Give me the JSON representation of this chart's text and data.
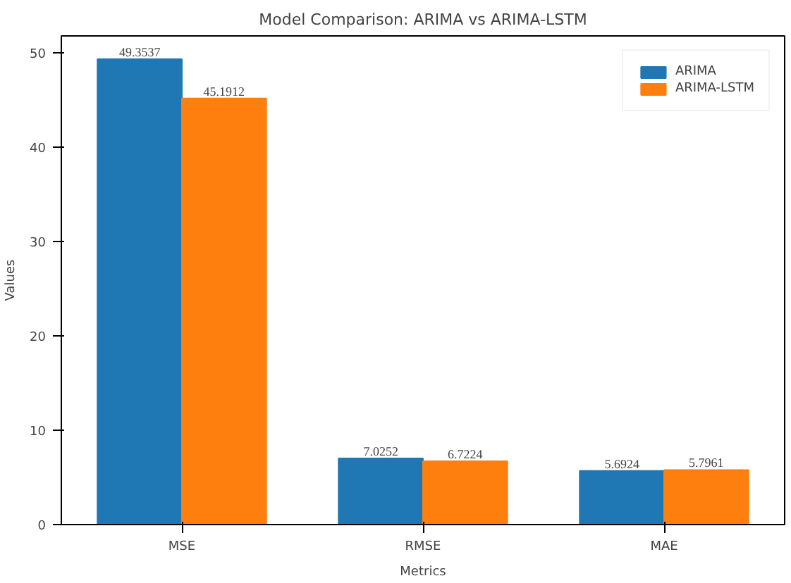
{
  "chart_data": {
    "type": "bar",
    "title": "Model Comparison: ARIMA vs ARIMA-LSTM",
    "xlabel": "Metrics",
    "ylabel": "Values",
    "categories": [
      "MSE",
      "RMSE",
      "MAE"
    ],
    "series": [
      {
        "name": "ARIMA",
        "color": "#1f77b4",
        "values": [
          49.3537,
          7.0252,
          5.6924
        ]
      },
      {
        "name": "ARIMA-LSTM",
        "color": "#ff7f0e",
        "values": [
          45.1912,
          6.7224,
          5.7961
        ]
      }
    ],
    "ylim": [
      0,
      51.82
    ],
    "yticks": [
      0,
      10,
      20,
      30,
      40,
      50
    ],
    "data_labels": true,
    "legend": "top right",
    "grid": false
  }
}
